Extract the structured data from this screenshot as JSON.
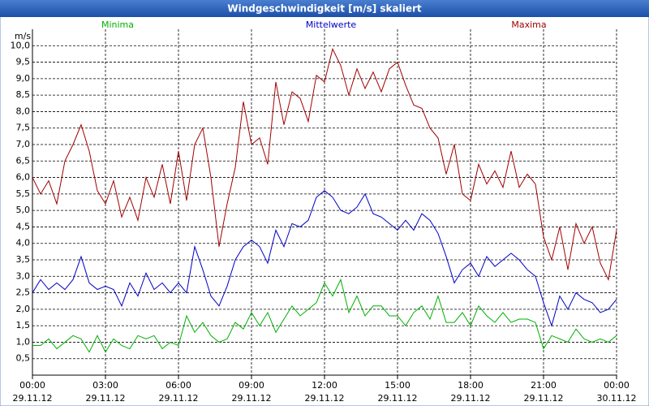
{
  "chart_data": {
    "type": "line",
    "title": "Windgeschwindigkeit [m/s] skaliert",
    "y_label": "m/s",
    "x": [
      0,
      20,
      40,
      60,
      80,
      100,
      120,
      140,
      160,
      180,
      200,
      220,
      240,
      260,
      280,
      300,
      320,
      340,
      360,
      380,
      400,
      420,
      440,
      460,
      480,
      500,
      520,
      540,
      560,
      580,
      600,
      620,
      640,
      660,
      680,
      700,
      720,
      740,
      760,
      780,
      800,
      820,
      840,
      860,
      880,
      900,
      920,
      940,
      960,
      980,
      1000,
      1020,
      1040,
      1060,
      1080,
      1100,
      1120,
      1140,
      1160,
      1180,
      1200,
      1220,
      1240,
      1260,
      1280,
      1300,
      1320,
      1340,
      1360,
      1380,
      1400,
      1420,
      1440
    ],
    "xlim": [
      0,
      1440
    ],
    "xticks": [
      {
        "value": 0,
        "label": "00:00"
      },
      {
        "value": 180,
        "label": "03:00"
      },
      {
        "value": 360,
        "label": "06:00"
      },
      {
        "value": 540,
        "label": "09:00"
      },
      {
        "value": 720,
        "label": "12:00"
      },
      {
        "value": 900,
        "label": "15:00"
      },
      {
        "value": 1080,
        "label": "18:00"
      },
      {
        "value": 1260,
        "label": "21:00"
      },
      {
        "value": 1440,
        "label": "00:00"
      }
    ],
    "xtick_dates": [
      "29.11.12",
      "29.11.12",
      "29.11.12",
      "29.11.12",
      "29.11.12",
      "29.11.12",
      "29.11.12",
      "29.11.12",
      "30.11.12"
    ],
    "ylim": [
      0,
      10.5
    ],
    "yticks": [
      {
        "value": 0.5,
        "label": "0,5"
      },
      {
        "value": 1,
        "label": "1,0"
      },
      {
        "value": 1.5,
        "label": "1,5"
      },
      {
        "value": 2,
        "label": "2,0"
      },
      {
        "value": 2.5,
        "label": "2,5"
      },
      {
        "value": 3,
        "label": "3,0"
      },
      {
        "value": 3.5,
        "label": "3,5"
      },
      {
        "value": 4,
        "label": "4,0"
      },
      {
        "value": 4.5,
        "label": "4,5"
      },
      {
        "value": 5,
        "label": "5,0"
      },
      {
        "value": 5.5,
        "label": "5,5"
      },
      {
        "value": 6,
        "label": "6,0"
      },
      {
        "value": 6.5,
        "label": "6,5"
      },
      {
        "value": 7,
        "label": "7,0"
      },
      {
        "value": 7.5,
        "label": "7,5"
      },
      {
        "value": 8,
        "label": "8,0"
      },
      {
        "value": 8.5,
        "label": "8,5"
      },
      {
        "value": 9,
        "label": "9,0"
      },
      {
        "value": 9.5,
        "label": "9,5"
      },
      {
        "value": 10,
        "label": "10,0"
      }
    ],
    "grid": true,
    "series": [
      {
        "name": "Minima",
        "color": "#00b000",
        "values": [
          0.9,
          0.9,
          1.1,
          0.8,
          1.0,
          1.2,
          1.1,
          0.7,
          1.2,
          0.7,
          1.1,
          0.9,
          0.8,
          1.2,
          1.1,
          1.2,
          0.8,
          1.0,
          0.9,
          1.8,
          1.3,
          1.6,
          1.2,
          1.0,
          1.1,
          1.6,
          1.4,
          1.9,
          1.5,
          1.9,
          1.3,
          1.7,
          2.1,
          1.8,
          2.0,
          2.2,
          2.8,
          2.4,
          2.9,
          1.9,
          2.4,
          1.8,
          2.1,
          2.1,
          1.8,
          1.8,
          1.5,
          1.9,
          2.1,
          1.7,
          2.4,
          1.6,
          1.6,
          1.9,
          1.5,
          2.1,
          1.8,
          1.6,
          1.9,
          1.6,
          1.7,
          1.7,
          1.6,
          0.8,
          1.2,
          1.1,
          1.0,
          1.4,
          1.1,
          1.0,
          1.1,
          1.0,
          1.2
        ]
      },
      {
        "name": "Mittelwerte",
        "color": "#0000c8",
        "values": [
          2.5,
          2.9,
          2.6,
          2.8,
          2.6,
          2.9,
          3.6,
          2.8,
          2.6,
          2.7,
          2.6,
          2.1,
          2.8,
          2.4,
          3.1,
          2.6,
          2.8,
          2.5,
          2.8,
          2.5,
          3.9,
          3.2,
          2.4,
          2.1,
          2.7,
          3.5,
          3.9,
          4.1,
          3.9,
          3.4,
          4.4,
          3.9,
          4.6,
          4.5,
          4.7,
          5.4,
          5.6,
          5.4,
          5.0,
          4.9,
          5.1,
          5.5,
          4.9,
          4.8,
          4.6,
          4.4,
          4.7,
          4.4,
          4.9,
          4.7,
          4.3,
          3.6,
          2.8,
          3.2,
          3.4,
          3.0,
          3.6,
          3.3,
          3.5,
          3.7,
          3.5,
          3.2,
          3.0,
          2.2,
          1.5,
          2.4,
          2.0,
          2.5,
          2.3,
          2.2,
          1.9,
          2.0,
          2.3
        ]
      },
      {
        "name": "Maxima",
        "color": "#a00000",
        "values": [
          6.0,
          5.5,
          5.9,
          5.2,
          6.5,
          7.0,
          7.6,
          6.8,
          5.6,
          5.2,
          5.9,
          4.8,
          5.4,
          4.7,
          6.0,
          5.4,
          6.4,
          5.2,
          6.8,
          5.3,
          7.0,
          7.5,
          6.0,
          3.9,
          5.2,
          6.3,
          8.3,
          7.0,
          7.2,
          6.4,
          8.9,
          7.6,
          8.6,
          8.4,
          7.7,
          9.1,
          8.9,
          9.9,
          9.4,
          8.5,
          9.3,
          8.7,
          9.2,
          8.6,
          9.3,
          9.5,
          8.8,
          8.2,
          8.1,
          7.5,
          7.2,
          6.1,
          7.0,
          5.5,
          5.3,
          6.4,
          5.8,
          6.2,
          5.7,
          6.8,
          5.7,
          6.1,
          5.8,
          4.2,
          3.5,
          4.5,
          3.2,
          4.6,
          4.0,
          4.5,
          3.4,
          2.9,
          4.4
        ]
      }
    ]
  }
}
